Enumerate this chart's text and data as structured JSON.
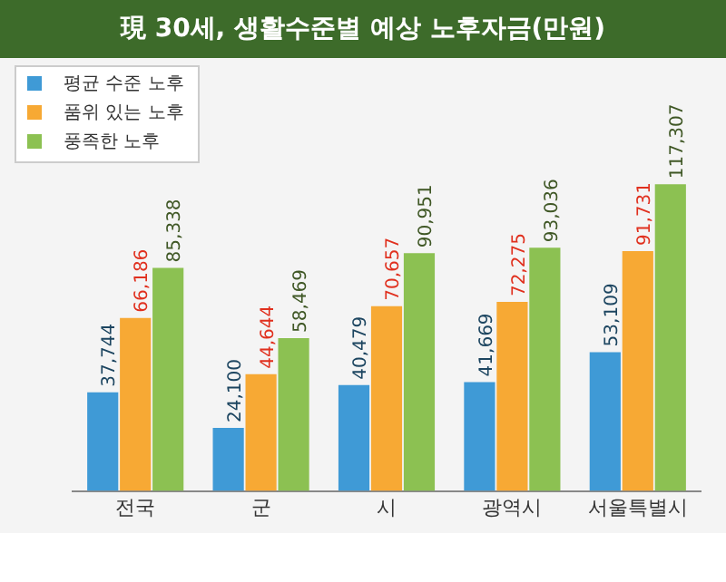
{
  "chart_data": {
    "type": "bar",
    "title": "現 30세, 생활수준별 예상 노후자금(만원)",
    "categories": [
      "전국",
      "군",
      "시",
      "광역시",
      "서울특별시"
    ],
    "series": [
      {
        "name": "평균 수준 노후",
        "color": "#3f9ad6",
        "values": [
          37744,
          24100,
          40479,
          41669,
          53109
        ],
        "value_labels": [
          "37,744",
          "24,100",
          "40,479",
          "41,669",
          "53,109"
        ]
      },
      {
        "name": "품위 있는 노후",
        "color": "#f7a934",
        "values": [
          66186,
          44644,
          70657,
          72275,
          91731
        ],
        "value_labels": [
          "66,186",
          "44,644",
          "70,657",
          "72,275",
          "91,731"
        ]
      },
      {
        "name": "풍족한 노후",
        "color": "#8cc152",
        "values": [
          85338,
          58469,
          90951,
          93036,
          117307
        ],
        "value_labels": [
          "85,338",
          "58,469",
          "90,951",
          "93,036",
          "117,307"
        ]
      }
    ],
    "grid": false,
    "legend": "top left"
  }
}
